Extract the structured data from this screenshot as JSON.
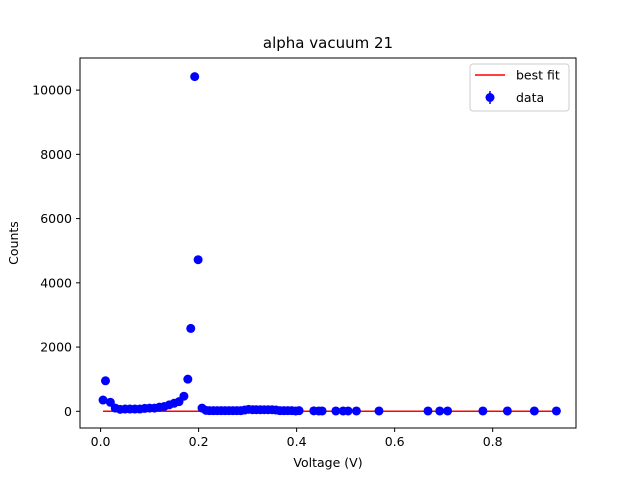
{
  "chart_data": {
    "type": "scatter",
    "title": "alpha vacuum 21",
    "xlabel": "Voltage (V)",
    "ylabel": "Counts",
    "xlim": [
      -0.042,
      0.97
    ],
    "ylim": [
      -520,
      11000
    ],
    "xticks": [
      0.0,
      0.2,
      0.4,
      0.6,
      0.8
    ],
    "xtick_labels": [
      "0.0",
      "0.2",
      "0.4",
      "0.6",
      "0.8"
    ],
    "yticks": [
      0,
      2000,
      4000,
      6000,
      8000,
      10000
    ],
    "ytick_labels": [
      "0",
      "2000",
      "4000",
      "6000",
      "8000",
      "10000"
    ],
    "grid": false,
    "legend_position": "upper right",
    "series": [
      {
        "name": "best fit",
        "kind": "line",
        "color": "#ff0000",
        "x": [
          0.005,
          0.93
        ],
        "y": [
          0,
          0
        ]
      },
      {
        "name": "data",
        "kind": "errorbar-points",
        "color": "#0000ff",
        "x": [
          0.005,
          0.01,
          0.02,
          0.03,
          0.04,
          0.05,
          0.06,
          0.07,
          0.08,
          0.09,
          0.1,
          0.11,
          0.12,
          0.13,
          0.14,
          0.15,
          0.16,
          0.17,
          0.178,
          0.184,
          0.192,
          0.199,
          0.207,
          0.215,
          0.222,
          0.23,
          0.238,
          0.246,
          0.254,
          0.262,
          0.27,
          0.278,
          0.286,
          0.294,
          0.302,
          0.31,
          0.318,
          0.326,
          0.334,
          0.342,
          0.35,
          0.358,
          0.366,
          0.374,
          0.382,
          0.39,
          0.398,
          0.405,
          0.435,
          0.445,
          0.452,
          0.48,
          0.495,
          0.505,
          0.522,
          0.568,
          0.668,
          0.692,
          0.708,
          0.78,
          0.83,
          0.885,
          0.93
        ],
        "y": [
          350,
          950,
          280,
          100,
          60,
          70,
          70,
          70,
          70,
          90,
          100,
          100,
          130,
          150,
          200,
          250,
          300,
          470,
          1000,
          2580,
          10420,
          4720,
          100,
          30,
          20,
          20,
          20,
          20,
          20,
          20,
          20,
          20,
          20,
          40,
          60,
          50,
          50,
          50,
          50,
          50,
          50,
          40,
          20,
          20,
          20,
          20,
          10,
          20,
          15,
          10,
          10,
          10,
          10,
          10,
          10,
          10,
          10,
          10,
          10,
          10,
          10,
          10,
          10
        ]
      }
    ]
  }
}
